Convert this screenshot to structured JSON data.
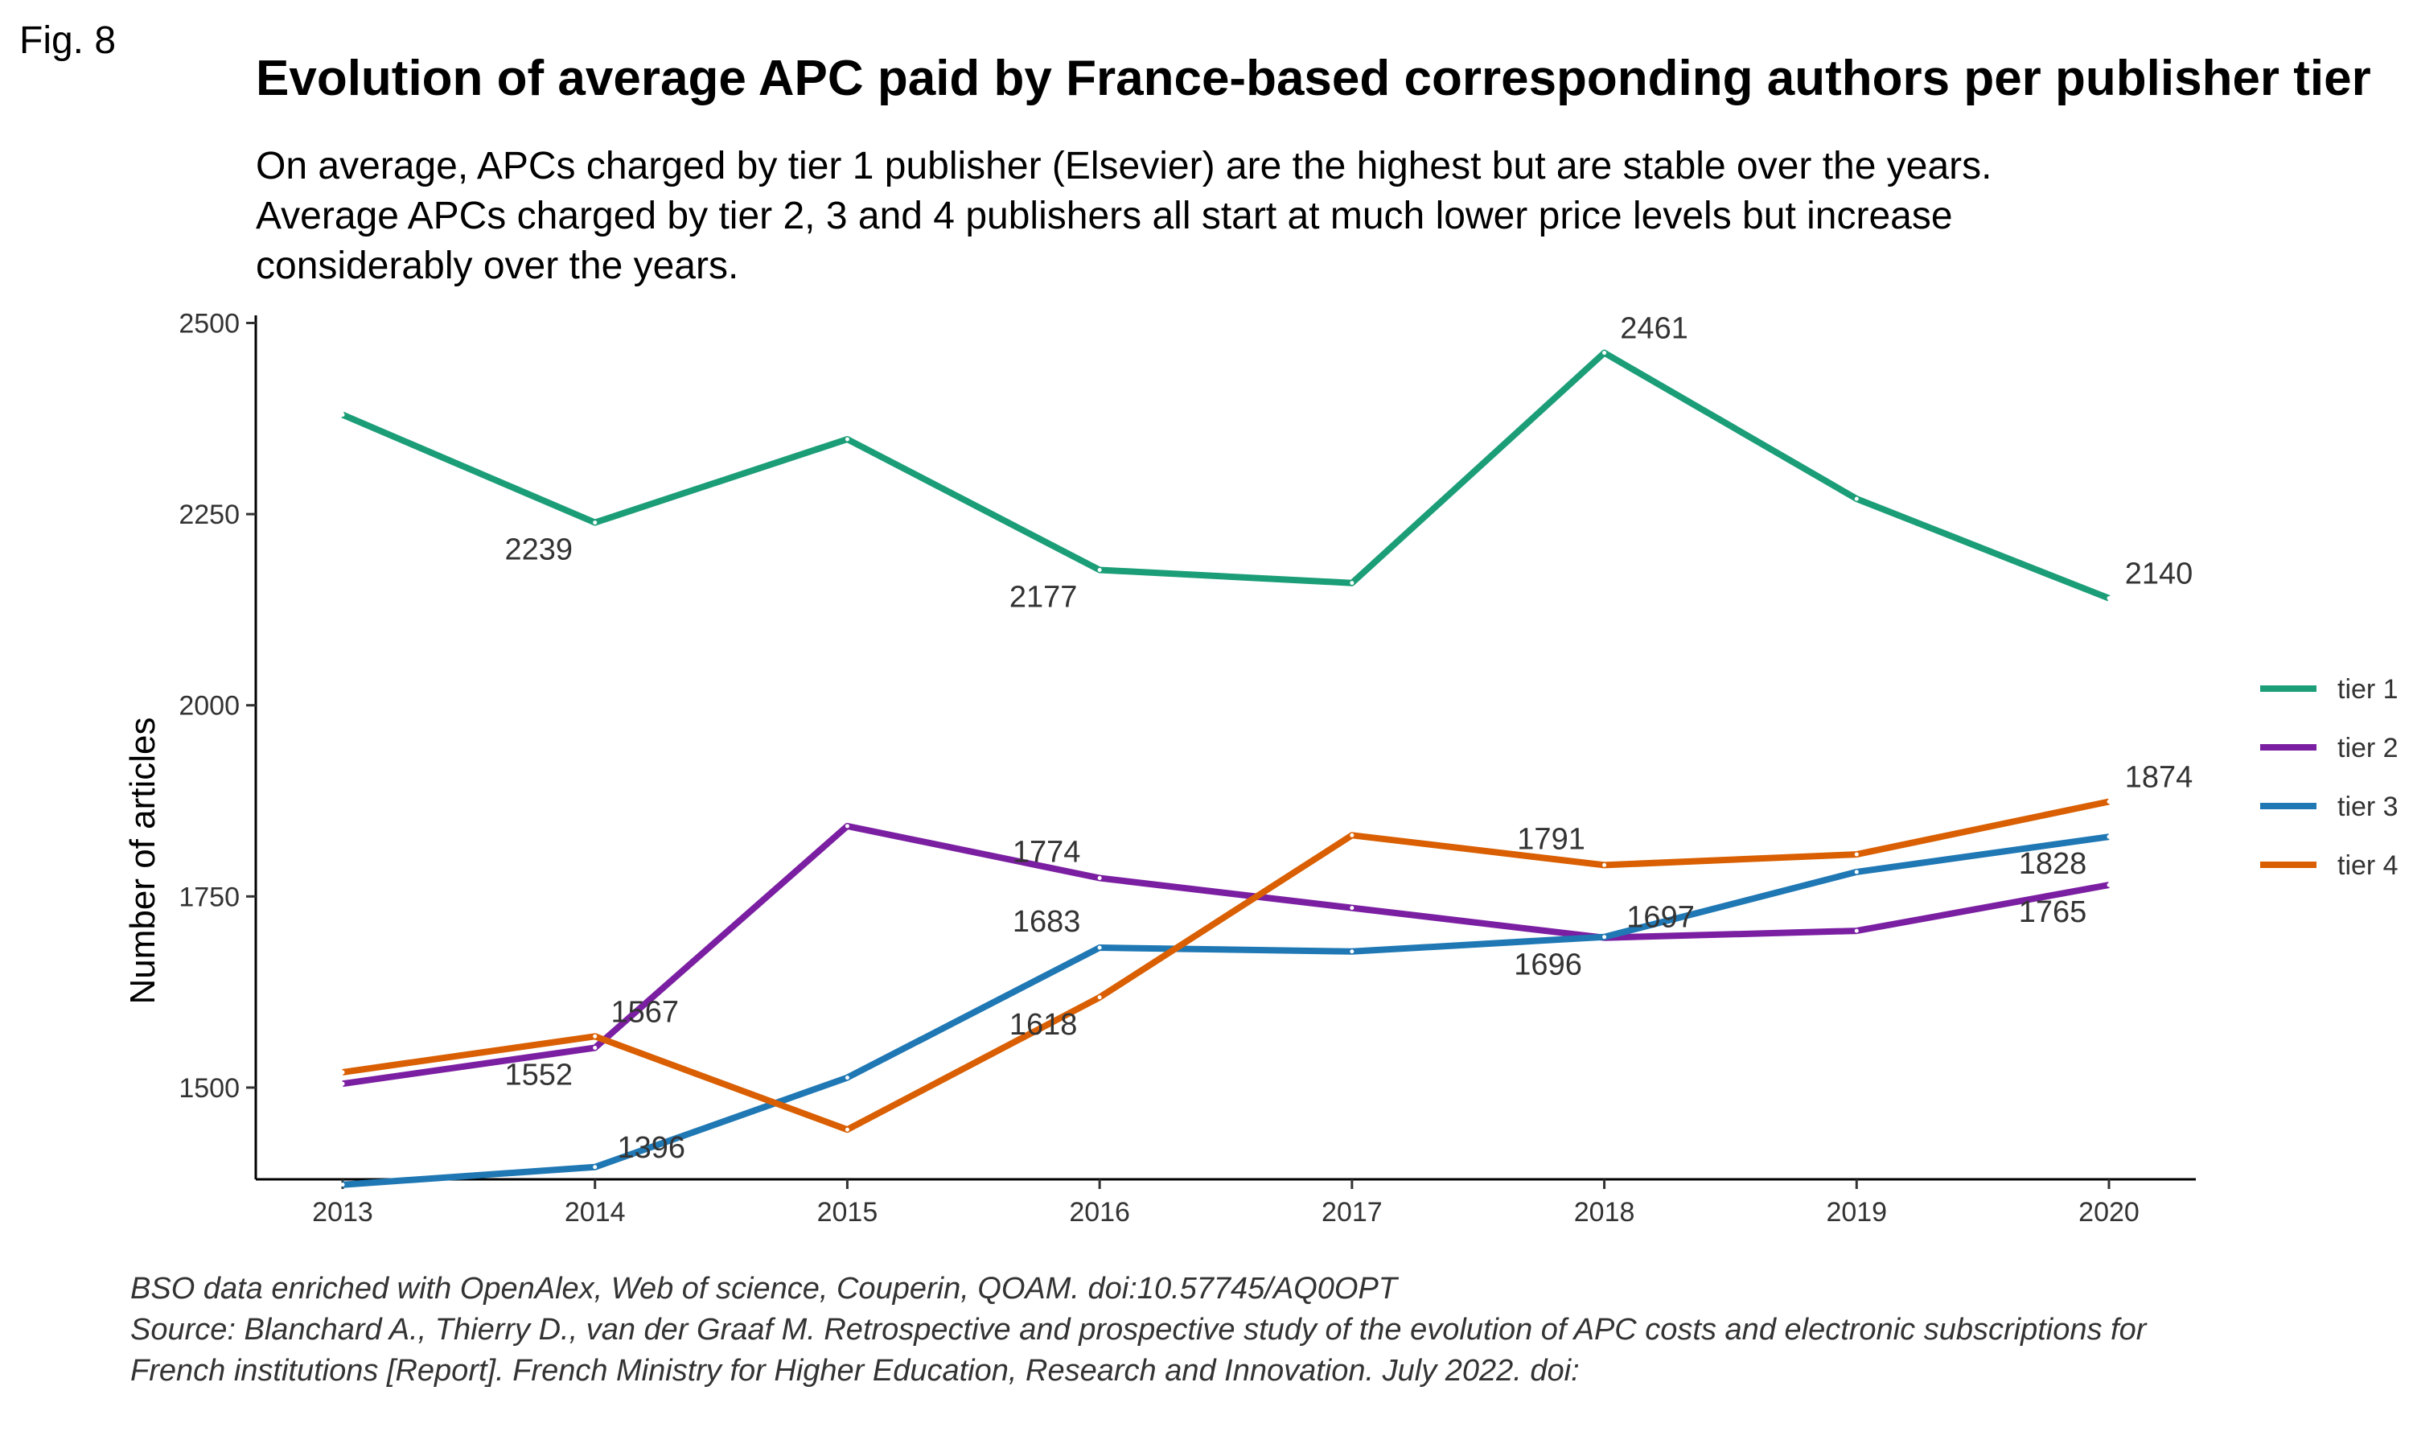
{
  "figure_label": "Fig. 8",
  "chart_data": {
    "type": "line",
    "title": "Evolution of average APC paid by France-based corresponding authors per publisher tier",
    "subtitle": [
      "On average, APCs charged by tier 1 publisher (Elsevier) are the highest but are stable over the years.",
      "Average APCs charged by tier 2, 3 and 4 publishers all start at much lower price levels but increase",
      "considerably over the years."
    ],
    "xlabel": "",
    "ylabel": "Number of articles",
    "x": [
      2013,
      2014,
      2015,
      2016,
      2017,
      2018,
      2019,
      2020
    ],
    "ylim": [
      1380,
      2510
    ],
    "yticks": [
      1500,
      1750,
      2000,
      2250,
      2500
    ],
    "grid": false,
    "legend_position": "right",
    "series": [
      {
        "name": "tier 1",
        "color": "#1b9e77",
        "values": [
          2380,
          2239,
          2348,
          2177,
          2160,
          2461,
          2270,
          2140
        ]
      },
      {
        "name": "tier 2",
        "color": "#7b1fa2",
        "values": [
          1505,
          1552,
          1842,
          1774,
          1735,
          1696,
          1705,
          1765
        ]
      },
      {
        "name": "tier 3",
        "color": "#1f78b4",
        "values": [
          1373,
          1396,
          1513,
          1683,
          1678,
          1697,
          1782,
          1828
        ]
      },
      {
        "name": "tier 4",
        "color": "#d95f02",
        "values": [
          1520,
          1567,
          1445,
          1618,
          1830,
          1791,
          1805,
          1874
        ]
      }
    ],
    "annotations": [
      {
        "series": 0,
        "index": 1,
        "text": "2239",
        "pos": "below-left"
      },
      {
        "series": 0,
        "index": 3,
        "text": "2177",
        "pos": "below-left"
      },
      {
        "series": 0,
        "index": 5,
        "text": "2461",
        "pos": "above-right"
      },
      {
        "series": 0,
        "index": 7,
        "text": "2140",
        "pos": "above-right"
      },
      {
        "series": 1,
        "index": 1,
        "text": "1552",
        "pos": "below-left"
      },
      {
        "series": 1,
        "index": 3,
        "text": "1774",
        "pos": "above-left"
      },
      {
        "series": 1,
        "index": 5,
        "text": "1696",
        "pos": "below-left"
      },
      {
        "series": 1,
        "index": 7,
        "text": "1765",
        "pos": "below-left"
      },
      {
        "series": 2,
        "index": 1,
        "text": "1396",
        "pos": "right"
      },
      {
        "series": 2,
        "index": 3,
        "text": "1683",
        "pos": "above-left"
      },
      {
        "series": 2,
        "index": 5,
        "text": "1697",
        "pos": "right"
      },
      {
        "series": 2,
        "index": 7,
        "text": "1828",
        "pos": "below-left"
      },
      {
        "series": 3,
        "index": 1,
        "text": "1567",
        "pos": "above-right"
      },
      {
        "series": 3,
        "index": 3,
        "text": "1618",
        "pos": "below-left"
      },
      {
        "series": 3,
        "index": 5,
        "text": "1791",
        "pos": "above-left"
      },
      {
        "series": 3,
        "index": 7,
        "text": "1874",
        "pos": "above-right"
      }
    ]
  },
  "caption": [
    "BSO data enriched with OpenAlex, Web of science, Couperin, QOAM. doi:10.57745/AQ0OPT",
    "Source: Blanchard A., Thierry D., van der Graaf M. Retrospective and prospective study of the evolution of APC costs and electronic subscriptions for",
    "French institutions [Report]. French Ministry for Higher Education, Research and Innovation. July 2022. doi:"
  ]
}
